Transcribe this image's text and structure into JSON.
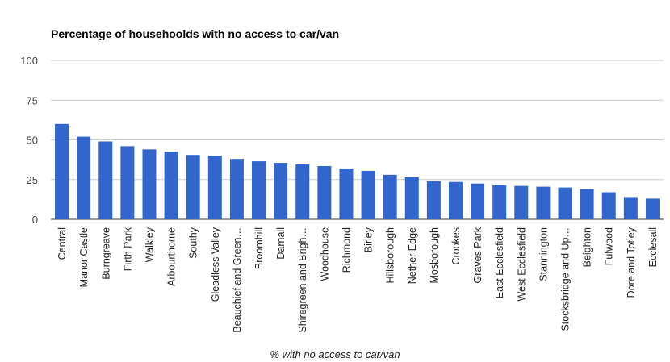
{
  "chart_data": {
    "type": "bar",
    "title": "Percentage of househoolds with no access to car/van",
    "xlabel": "% with no access to car/van",
    "ylabel": "",
    "ylim": [
      0,
      100
    ],
    "yticks": [
      0,
      25,
      50,
      75,
      100
    ],
    "grid": true,
    "legend": "none",
    "bar_color": "#3366cc",
    "categories": [
      "Central",
      "Manor Castle",
      "Burngreave",
      "Firth Park",
      "Walkley",
      "Arbourthorne",
      "Southy",
      "Gleadless Valley",
      "Beauchief and Green…",
      "Broomhill",
      "Darnall",
      "Shiregreen and Brigh…",
      "Woodhouse",
      "Richmond",
      "Birley",
      "Hillsborough",
      "Nether Edge",
      "Mosborough",
      "Crookes",
      "Graves Park",
      "East Ecclesfield",
      "West Ecclesfield",
      "Stannington",
      "Stocksbridge and Up…",
      "Beighton",
      "Fulwood",
      "Dore and Totley",
      "Ecclesall"
    ],
    "values": [
      60,
      52,
      49,
      46,
      44,
      42.5,
      40.5,
      40,
      38,
      36.5,
      35.5,
      34.5,
      33.5,
      32,
      30.5,
      28,
      26.5,
      24,
      23.5,
      22.5,
      21.5,
      21,
      20.5,
      20,
      19,
      17,
      14,
      13
    ]
  }
}
